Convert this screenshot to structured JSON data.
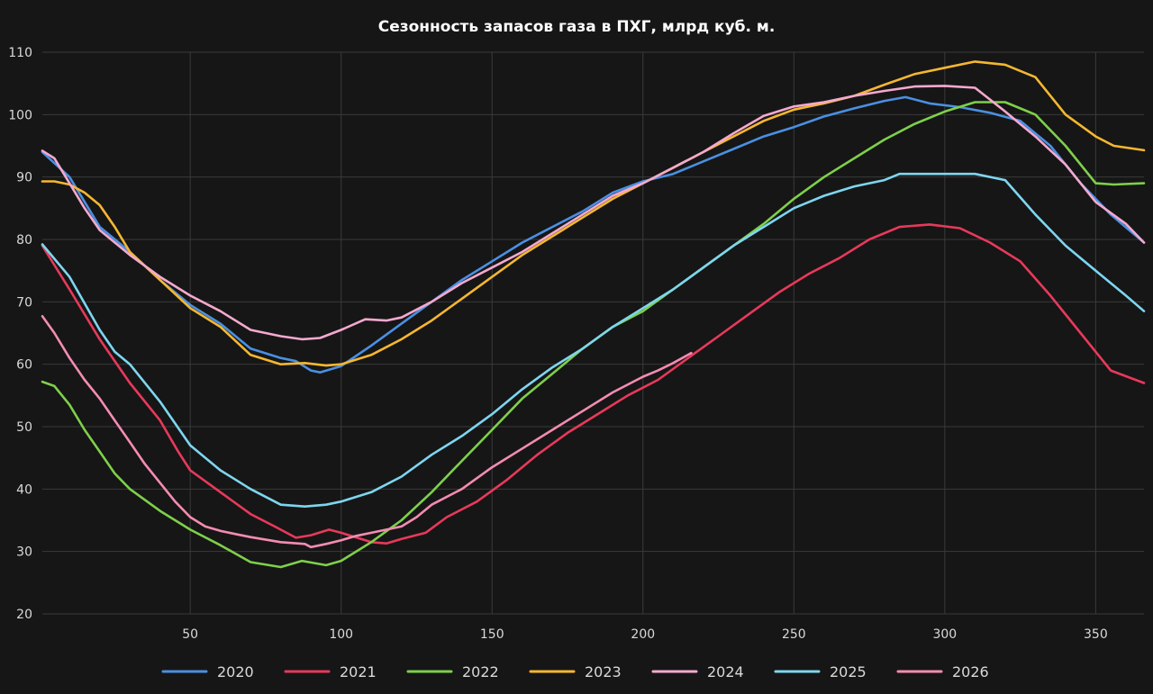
{
  "chart_data": {
    "type": "line",
    "title": "Сезонность запасов газа в ПХГ, млрд куб. м.",
    "xlabel": "",
    "ylabel": "",
    "xlim": [
      1,
      366
    ],
    "ylim": [
      20,
      110
    ],
    "xticks": [
      50,
      100,
      150,
      200,
      250,
      300,
      350
    ],
    "yticks": [
      20,
      30,
      40,
      50,
      60,
      70,
      80,
      90,
      100,
      110
    ],
    "grid": true,
    "legend_position": "bottom",
    "series": [
      {
        "name": "2020",
        "color": "#4a90e2",
        "points": [
          [
            1,
            94
          ],
          [
            10,
            90
          ],
          [
            20,
            82
          ],
          [
            30,
            78
          ],
          [
            40,
            73.5
          ],
          [
            50,
            69.5
          ],
          [
            60,
            66.5
          ],
          [
            70,
            62.5
          ],
          [
            80,
            61
          ],
          [
            85,
            60.5
          ],
          [
            90,
            59
          ],
          [
            93,
            58.7
          ],
          [
            100,
            59.7
          ],
          [
            110,
            63
          ],
          [
            120,
            66.5
          ],
          [
            130,
            70
          ],
          [
            140,
            73.5
          ],
          [
            150,
            76.5
          ],
          [
            160,
            79.5
          ],
          [
            170,
            82
          ],
          [
            180,
            84.5
          ],
          [
            190,
            87.5
          ],
          [
            200,
            89.3
          ],
          [
            210,
            90.5
          ],
          [
            220,
            92.5
          ],
          [
            230,
            94.5
          ],
          [
            240,
            96.5
          ],
          [
            250,
            98
          ],
          [
            260,
            99.7
          ],
          [
            270,
            101
          ],
          [
            280,
            102.2
          ],
          [
            287,
            102.8
          ],
          [
            295,
            101.8
          ],
          [
            305,
            101.2
          ],
          [
            315,
            100.3
          ],
          [
            325,
            99
          ],
          [
            335,
            95
          ],
          [
            345,
            89
          ],
          [
            355,
            84
          ],
          [
            366,
            79.5
          ]
        ]
      },
      {
        "name": "2021",
        "color": "#e8395b",
        "points": [
          [
            1,
            79
          ],
          [
            10,
            72
          ],
          [
            20,
            64
          ],
          [
            30,
            57
          ],
          [
            40,
            51
          ],
          [
            46,
            46
          ],
          [
            50,
            43
          ],
          [
            60,
            39.5
          ],
          [
            70,
            36
          ],
          [
            78,
            34
          ],
          [
            85,
            32.2
          ],
          [
            90,
            32.6
          ],
          [
            96,
            33.5
          ],
          [
            100,
            33
          ],
          [
            110,
            31.5
          ],
          [
            115,
            31.3
          ],
          [
            120,
            32
          ],
          [
            128,
            33
          ],
          [
            135,
            35.5
          ],
          [
            145,
            38
          ],
          [
            155,
            41.5
          ],
          [
            165,
            45.5
          ],
          [
            175,
            49
          ],
          [
            185,
            52
          ],
          [
            195,
            55
          ],
          [
            205,
            57.5
          ],
          [
            215,
            61
          ],
          [
            225,
            64.5
          ],
          [
            235,
            68
          ],
          [
            245,
            71.5
          ],
          [
            255,
            74.5
          ],
          [
            265,
            77
          ],
          [
            275,
            80
          ],
          [
            285,
            82
          ],
          [
            295,
            82.4
          ],
          [
            305,
            81.8
          ],
          [
            315,
            79.5
          ],
          [
            325,
            76.5
          ],
          [
            335,
            71
          ],
          [
            345,
            65
          ],
          [
            355,
            59
          ],
          [
            366,
            57
          ]
        ]
      },
      {
        "name": "2022",
        "color": "#7ed04a",
        "points": [
          [
            1,
            57.2
          ],
          [
            5,
            56.5
          ],
          [
            10,
            53.5
          ],
          [
            15,
            49.5
          ],
          [
            20,
            46
          ],
          [
            25,
            42.5
          ],
          [
            30,
            40
          ],
          [
            40,
            36.5
          ],
          [
            50,
            33.5
          ],
          [
            60,
            31
          ],
          [
            70,
            28.3
          ],
          [
            80,
            27.5
          ],
          [
            87,
            28.5
          ],
          [
            95,
            27.8
          ],
          [
            100,
            28.5
          ],
          [
            110,
            31.5
          ],
          [
            120,
            35
          ],
          [
            130,
            39.5
          ],
          [
            140,
            44.5
          ],
          [
            150,
            49.5
          ],
          [
            160,
            54.5
          ],
          [
            170,
            58.5
          ],
          [
            180,
            62.5
          ],
          [
            190,
            66
          ],
          [
            200,
            68.5
          ],
          [
            210,
            72
          ],
          [
            220,
            75.5
          ],
          [
            230,
            79
          ],
          [
            240,
            82.5
          ],
          [
            250,
            86.5
          ],
          [
            260,
            90
          ],
          [
            270,
            93
          ],
          [
            280,
            96
          ],
          [
            290,
            98.5
          ],
          [
            300,
            100.5
          ],
          [
            310,
            102
          ],
          [
            320,
            102
          ],
          [
            330,
            100
          ],
          [
            340,
            95
          ],
          [
            350,
            89
          ],
          [
            356,
            88.8
          ],
          [
            366,
            89
          ]
        ]
      },
      {
        "name": "2023",
        "color": "#f5b731",
        "points": [
          [
            1,
            89.3
          ],
          [
            5,
            89.3
          ],
          [
            10,
            88.8
          ],
          [
            15,
            87.5
          ],
          [
            20,
            85.5
          ],
          [
            25,
            82
          ],
          [
            30,
            78
          ],
          [
            40,
            73.5
          ],
          [
            50,
            69
          ],
          [
            60,
            66
          ],
          [
            70,
            61.5
          ],
          [
            80,
            60
          ],
          [
            88,
            60.2
          ],
          [
            95,
            59.8
          ],
          [
            100,
            60
          ],
          [
            110,
            61.5
          ],
          [
            120,
            64
          ],
          [
            130,
            67
          ],
          [
            140,
            70.5
          ],
          [
            150,
            74
          ],
          [
            160,
            77.5
          ],
          [
            170,
            80.5
          ],
          [
            180,
            83.5
          ],
          [
            190,
            86.5
          ],
          [
            200,
            89
          ],
          [
            210,
            91.5
          ],
          [
            220,
            94
          ],
          [
            230,
            96.5
          ],
          [
            240,
            99
          ],
          [
            250,
            100.8
          ],
          [
            260,
            101.8
          ],
          [
            270,
            103
          ],
          [
            280,
            104.8
          ],
          [
            290,
            106.5
          ],
          [
            300,
            107.5
          ],
          [
            310,
            108.5
          ],
          [
            320,
            108
          ],
          [
            330,
            106
          ],
          [
            340,
            100
          ],
          [
            350,
            96.5
          ],
          [
            356,
            95
          ],
          [
            366,
            94.3
          ]
        ]
      },
      {
        "name": "2024",
        "color": "#f5a9cf",
        "points": [
          [
            1,
            94.2
          ],
          [
            5,
            93
          ],
          [
            10,
            89
          ],
          [
            15,
            85
          ],
          [
            20,
            81.5
          ],
          [
            30,
            77.5
          ],
          [
            40,
            74
          ],
          [
            50,
            71
          ],
          [
            60,
            68.5
          ],
          [
            70,
            65.5
          ],
          [
            80,
            64.5
          ],
          [
            87,
            64
          ],
          [
            93,
            64.2
          ],
          [
            100,
            65.5
          ],
          [
            108,
            67.2
          ],
          [
            115,
            67
          ],
          [
            120,
            67.5
          ],
          [
            130,
            70
          ],
          [
            140,
            73
          ],
          [
            150,
            75.5
          ],
          [
            160,
            78
          ],
          [
            170,
            81
          ],
          [
            180,
            84
          ],
          [
            190,
            87
          ],
          [
            200,
            89
          ],
          [
            210,
            91.5
          ],
          [
            220,
            94
          ],
          [
            230,
            97
          ],
          [
            240,
            99.8
          ],
          [
            250,
            101.3
          ],
          [
            260,
            102
          ],
          [
            270,
            103
          ],
          [
            280,
            103.8
          ],
          [
            290,
            104.5
          ],
          [
            300,
            104.6
          ],
          [
            310,
            104.3
          ],
          [
            320,
            100.5
          ],
          [
            330,
            96.5
          ],
          [
            340,
            92
          ],
          [
            350,
            86
          ],
          [
            360,
            82.5
          ],
          [
            366,
            79.5
          ]
        ]
      },
      {
        "name": "2025",
        "color": "#7ed6f0",
        "points": [
          [
            1,
            79.2
          ],
          [
            10,
            74
          ],
          [
            20,
            65.5
          ],
          [
            25,
            62
          ],
          [
            30,
            60
          ],
          [
            40,
            54
          ],
          [
            50,
            47
          ],
          [
            60,
            43
          ],
          [
            70,
            40
          ],
          [
            80,
            37.5
          ],
          [
            88,
            37.2
          ],
          [
            95,
            37.5
          ],
          [
            100,
            38
          ],
          [
            110,
            39.5
          ],
          [
            120,
            42
          ],
          [
            130,
            45.5
          ],
          [
            140,
            48.5
          ],
          [
            150,
            52
          ],
          [
            160,
            56
          ],
          [
            170,
            59.5
          ],
          [
            180,
            62.5
          ],
          [
            190,
            66
          ],
          [
            200,
            69
          ],
          [
            210,
            72
          ],
          [
            220,
            75.5
          ],
          [
            230,
            79
          ],
          [
            240,
            82
          ],
          [
            250,
            85
          ],
          [
            260,
            87
          ],
          [
            270,
            88.5
          ],
          [
            280,
            89.5
          ],
          [
            285,
            90.5
          ],
          [
            290,
            90.5
          ],
          [
            300,
            90.5
          ],
          [
            310,
            90.5
          ],
          [
            320,
            89.5
          ],
          [
            330,
            84
          ],
          [
            340,
            79
          ],
          [
            350,
            75
          ],
          [
            360,
            71
          ],
          [
            366,
            68.5
          ]
        ]
      },
      {
        "name": "2026",
        "color": "#f48cb2",
        "points": [
          [
            1,
            67.7
          ],
          [
            5,
            65
          ],
          [
            10,
            61
          ],
          [
            15,
            57.5
          ],
          [
            20,
            54.5
          ],
          [
            25,
            51
          ],
          [
            30,
            47.5
          ],
          [
            35,
            44
          ],
          [
            40,
            41
          ],
          [
            45,
            38
          ],
          [
            50,
            35.5
          ],
          [
            55,
            34
          ],
          [
            60,
            33.3
          ],
          [
            65,
            32.8
          ],
          [
            70,
            32.3
          ],
          [
            80,
            31.5
          ],
          [
            88,
            31.2
          ],
          [
            90,
            30.7
          ],
          [
            95,
            31.2
          ],
          [
            100,
            31.8
          ],
          [
            105,
            32.5
          ],
          [
            110,
            33
          ],
          [
            115,
            33.5
          ],
          [
            120,
            34
          ],
          [
            125,
            35.5
          ],
          [
            130,
            37.5
          ],
          [
            140,
            40
          ],
          [
            150,
            43.5
          ],
          [
            160,
            46.5
          ],
          [
            170,
            49.5
          ],
          [
            180,
            52.5
          ],
          [
            190,
            55.5
          ],
          [
            200,
            58
          ],
          [
            205,
            59
          ],
          [
            210,
            60.2
          ],
          [
            216,
            61.8
          ]
        ]
      }
    ]
  }
}
